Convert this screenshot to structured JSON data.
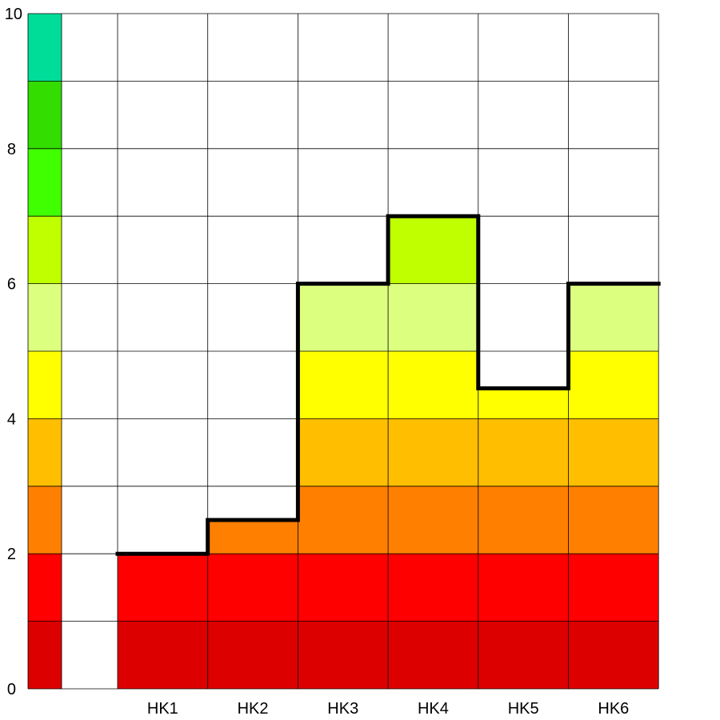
{
  "chart_data": {
    "type": "bar",
    "style": "stepped color-banded bar chart",
    "categories": [
      "HK1",
      "HK2",
      "HK3",
      "HK4",
      "HK5",
      "HK6"
    ],
    "values": [
      2.0,
      2.5,
      6.0,
      7.0,
      4.45,
      6.0
    ],
    "title": "",
    "xlabel": "",
    "ylabel": "",
    "ylim": [
      0,
      10
    ],
    "y_ticks": [
      0,
      2,
      4,
      6,
      8,
      10
    ],
    "y_tick_labels": [
      "0",
      "2",
      "4",
      "6",
      "8",
      "10"
    ],
    "grid": true,
    "legend": "none",
    "color_scale_bar": "left",
    "band_colors": [
      {
        "from": 0,
        "to": 1,
        "color": "#dd0000"
      },
      {
        "from": 1,
        "to": 2,
        "color": "#ff0000"
      },
      {
        "from": 2,
        "to": 3,
        "color": "#ff8000"
      },
      {
        "from": 3,
        "to": 4,
        "color": "#ffbf00"
      },
      {
        "from": 4,
        "to": 5,
        "color": "#ffff00"
      },
      {
        "from": 5,
        "to": 6,
        "color": "#ddff80"
      },
      {
        "from": 6,
        "to": 7,
        "color": "#bfff00"
      },
      {
        "from": 7,
        "to": 8,
        "color": "#40ff00"
      },
      {
        "from": 8,
        "to": 9,
        "color": "#33dd00"
      },
      {
        "from": 9,
        "to": 10,
        "color": "#00dd99"
      }
    ],
    "outline_color": "#000000",
    "grid_color": "#000000"
  }
}
